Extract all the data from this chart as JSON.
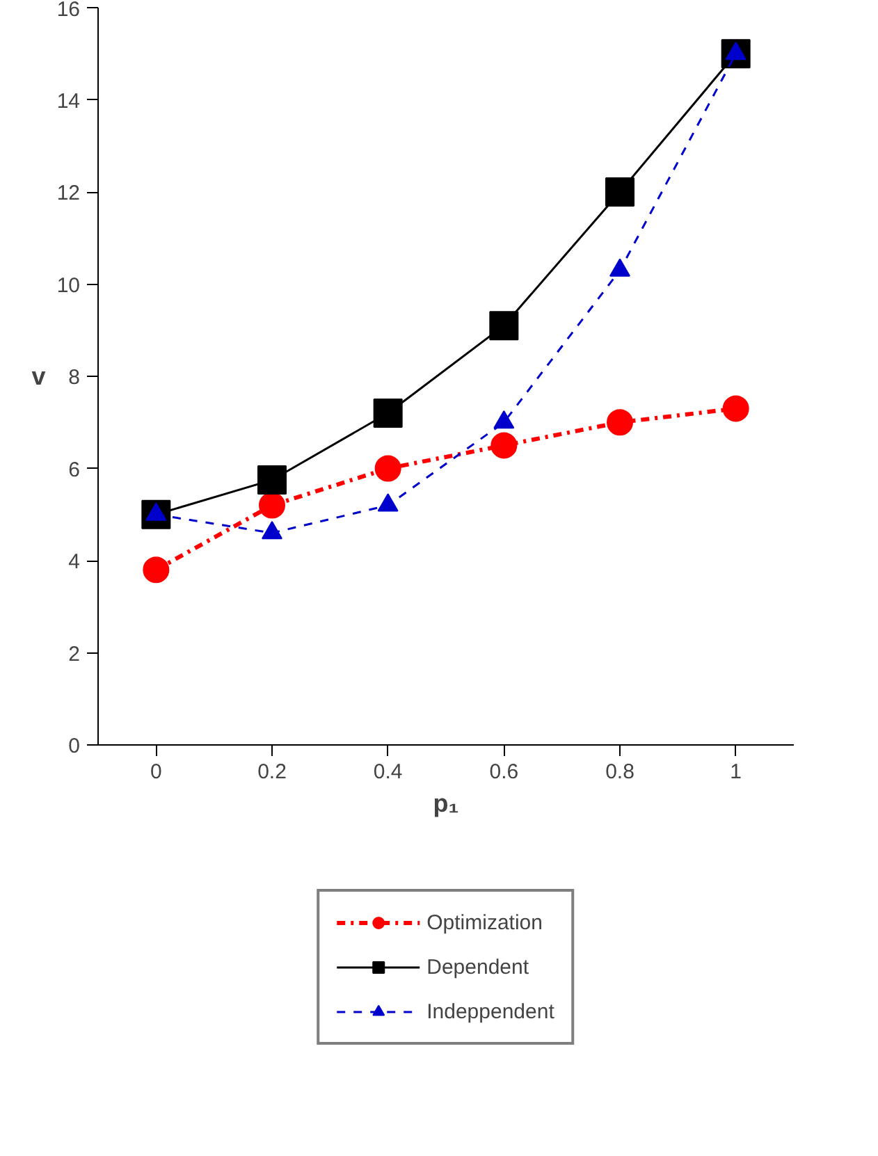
{
  "chart_data": {
    "type": "line",
    "xlabel": "p₁",
    "ylabel": "v",
    "categories": [
      "0",
      "0.2",
      "0.4",
      "0.6",
      "0.8",
      "1"
    ],
    "series": [
      {
        "name": "Optimization",
        "color": "#ff0000",
        "marker": "circle",
        "line_style": "dashdot",
        "values": [
          3.8,
          5.2,
          6.0,
          6.5,
          7.0,
          7.3
        ]
      },
      {
        "name": "Dependent",
        "color": "#000000",
        "marker": "square",
        "line_style": "solid",
        "values": [
          5.0,
          5.75,
          7.2,
          9.1,
          12.0,
          15.0
        ]
      },
      {
        "name": "Indeppendent",
        "color": "#0000cc",
        "marker": "triangle",
        "line_style": "dashed",
        "values": [
          5.0,
          4.6,
          5.2,
          7.0,
          10.3,
          15.0
        ]
      }
    ],
    "ylim": [
      0,
      16
    ],
    "yticks": [
      0,
      2,
      4,
      6,
      8,
      10,
      12,
      14,
      16
    ],
    "grid": false,
    "legend": "bottom"
  }
}
